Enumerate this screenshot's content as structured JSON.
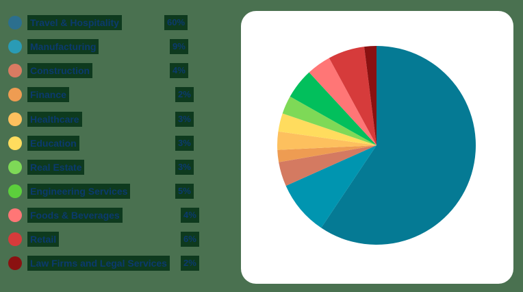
{
  "chart_data": {
    "type": "pie",
    "title": "",
    "categories": [
      "Travel & Hospitality",
      "Manufacturing",
      "Construction",
      "Finance",
      "Healthcare",
      "Education",
      "Real Estate",
      "Engineering Services",
      "Foods & Beverages",
      "Retail",
      "Law Firms and Legal Services"
    ],
    "values": [
      60,
      9,
      4,
      2,
      3,
      3,
      3,
      5,
      4,
      6,
      2
    ],
    "labels": [
      "60%",
      "9%",
      "4%",
      "2%",
      "3%",
      "3%",
      "3%",
      "5%",
      "4%",
      "6%",
      "2%"
    ],
    "colors": [
      "#057a94",
      "#0095b0",
      "#d47a61",
      "#ee9c52",
      "#fdc05e",
      "#ffdc5e",
      "#7ed957",
      "#02bf5c",
      "#ff7676",
      "#d63b3b",
      "#8b1111"
    ],
    "legend_position": "left",
    "start_angle": "top, clockwise"
  },
  "legend": {
    "items": [
      {
        "label": "Travel & Hospitality",
        "pct": "60%"
      },
      {
        "label": "Manufacturing",
        "pct": "9%"
      },
      {
        "label": "Construction",
        "pct": "4%"
      },
      {
        "label": "Finance",
        "pct": "2%"
      },
      {
        "label": "Healthcare",
        "pct": "3%"
      },
      {
        "label": "Education",
        "pct": "3%"
      },
      {
        "label": "Real Estate",
        "pct": "3%"
      },
      {
        "label": "Engineering Services",
        "pct": "5%"
      },
      {
        "label": "Foods & Beverages",
        "pct": "4%"
      },
      {
        "label": "Retail",
        "pct": "6%"
      },
      {
        "label": "Law Firms and Legal Services",
        "pct": "2%"
      }
    ]
  }
}
